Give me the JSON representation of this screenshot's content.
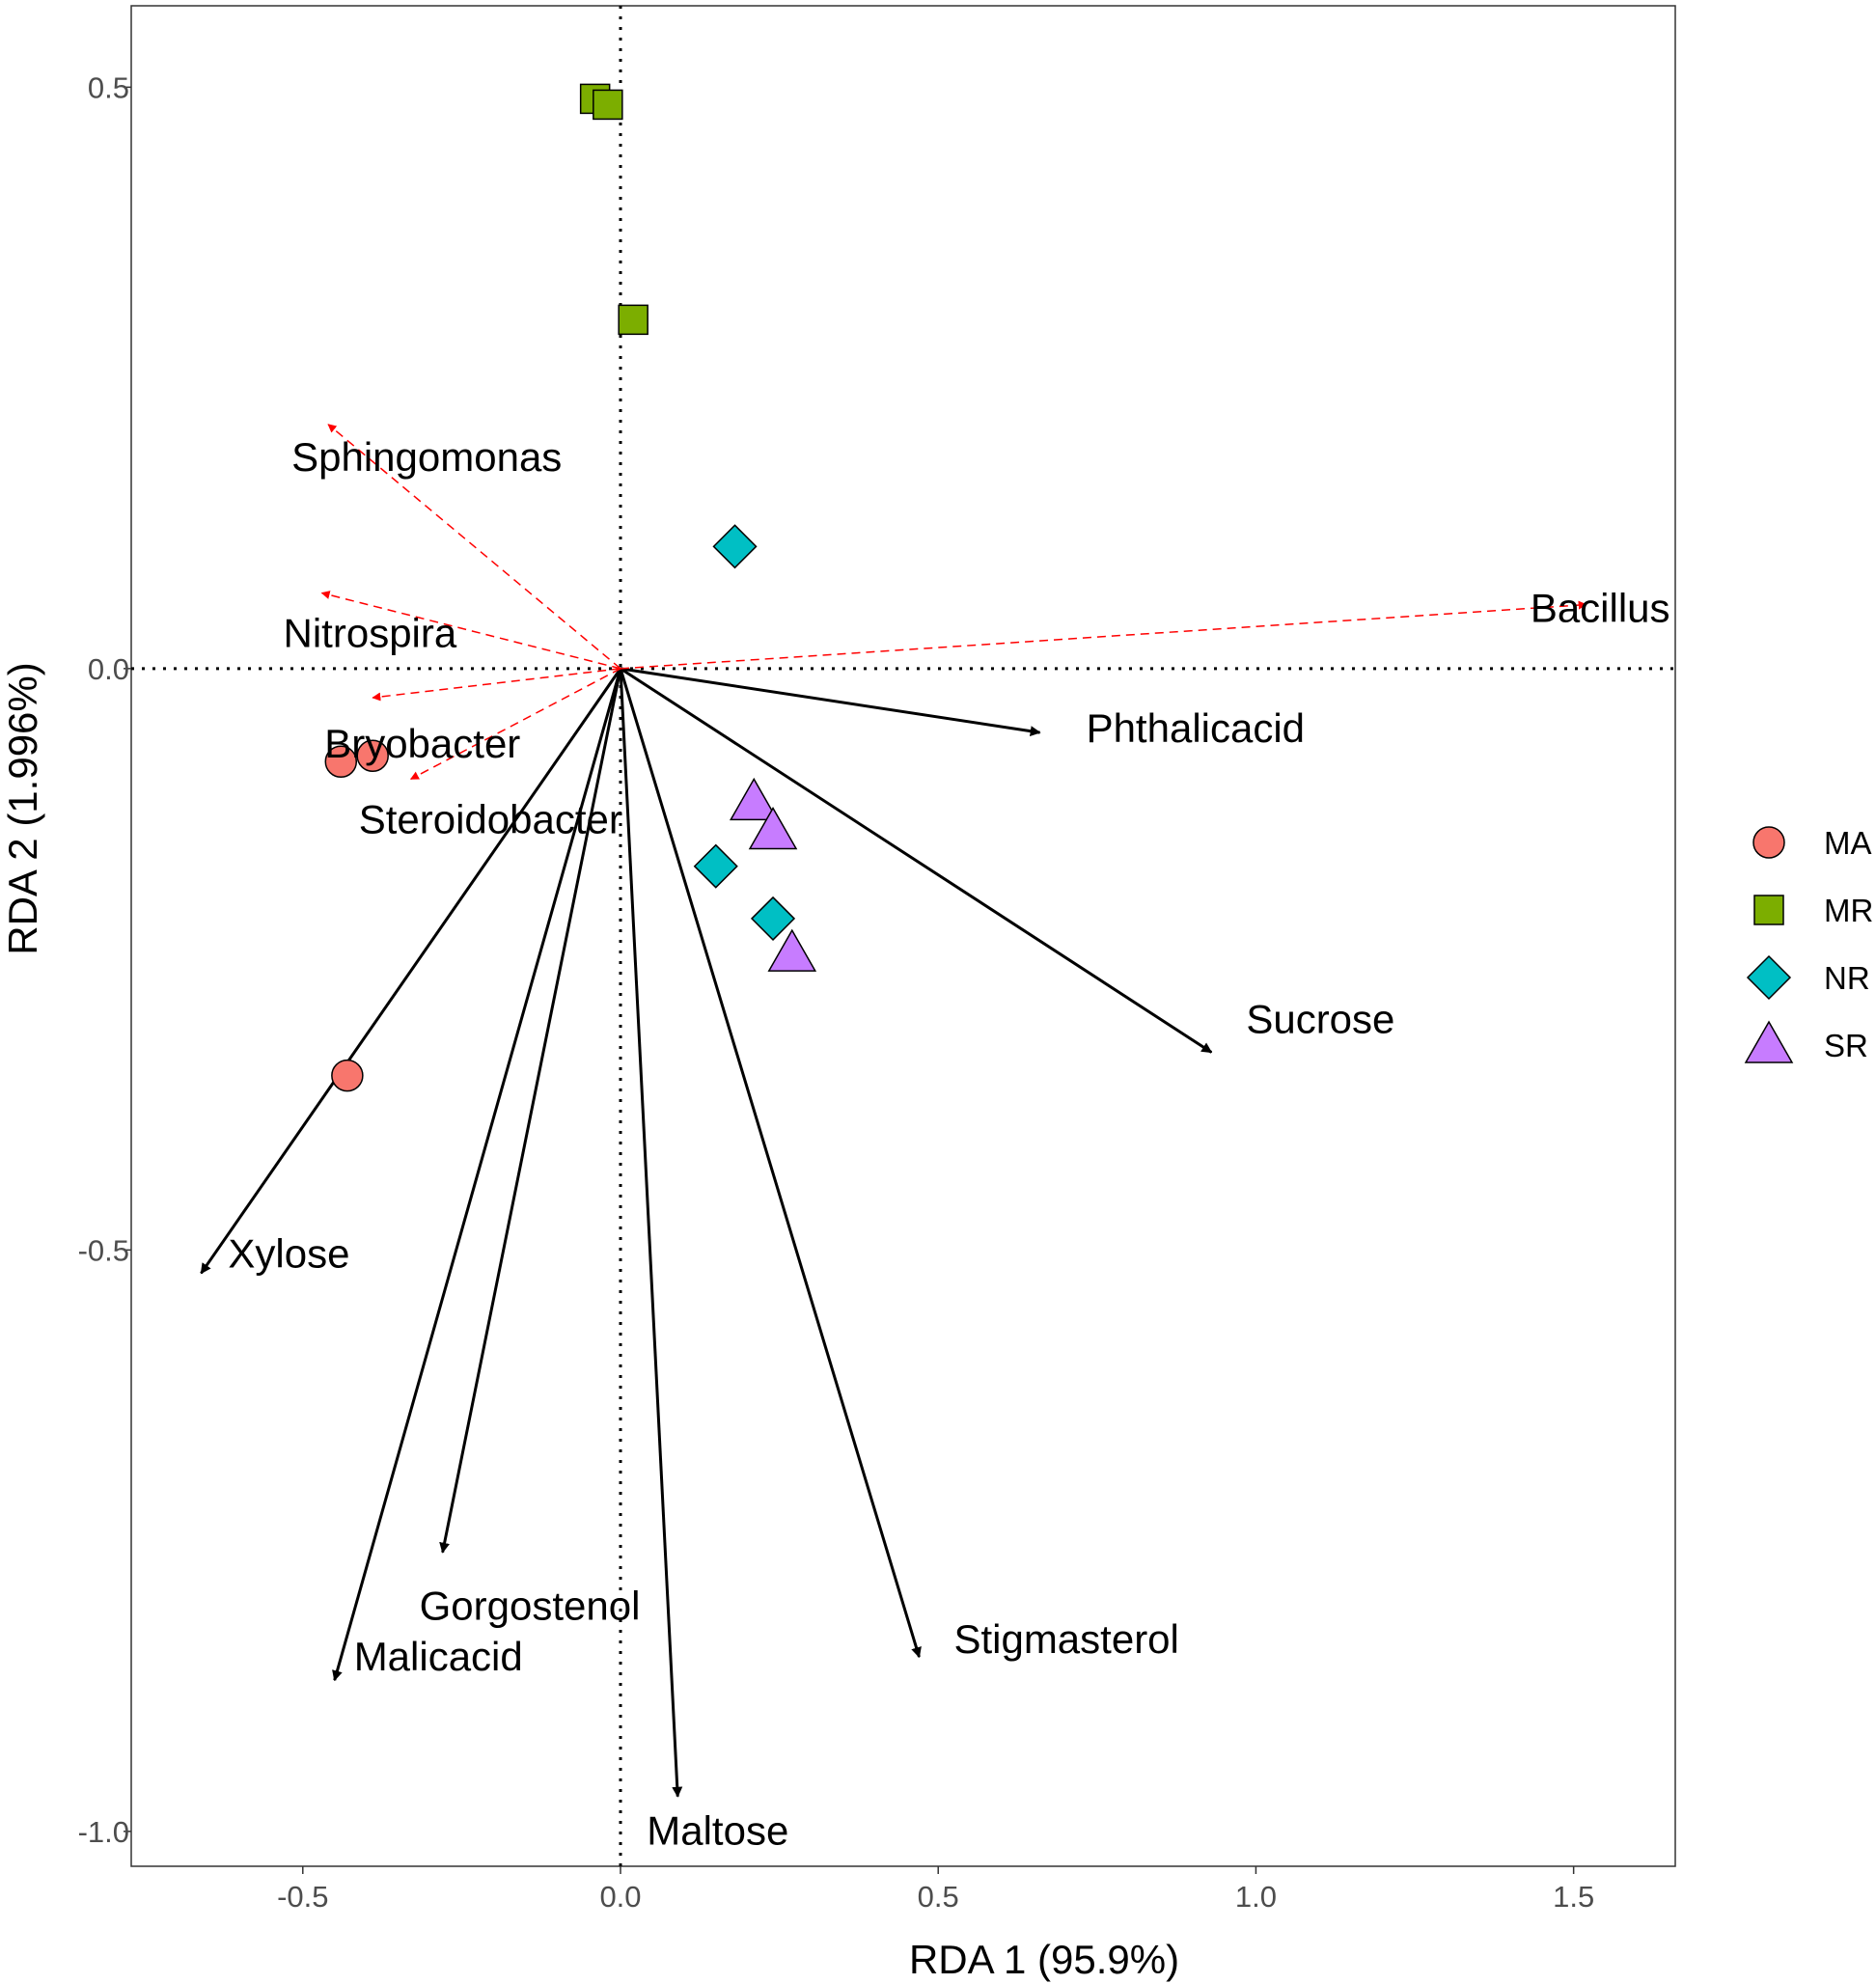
{
  "chart_data": {
    "type": "scatter",
    "title": "",
    "xlabel": "RDA 1 (95.9%)",
    "ylabel": "RDA 2 (1.996%)",
    "xlim": [
      -0.77,
      1.66
    ],
    "ylim": [
      -1.03,
      0.57
    ],
    "xticks": [
      {
        "value": -0.5,
        "label": "-0.5"
      },
      {
        "value": 0.0,
        "label": "0.0"
      },
      {
        "value": 0.5,
        "label": "0.5"
      },
      {
        "value": 1.0,
        "label": "1.0"
      },
      {
        "value": 1.5,
        "label": "1.5"
      }
    ],
    "yticks": [
      {
        "value": 0.5,
        "label": "0.5"
      },
      {
        "value": 0.0,
        "label": "0.0"
      },
      {
        "value": -0.5,
        "label": "-0.5"
      },
      {
        "value": -1.0,
        "label": "-1.0"
      }
    ],
    "grid": false,
    "legend_position": "right",
    "groups": [
      {
        "name": "MA",
        "shape": "circle",
        "color": "#f8766d"
      },
      {
        "name": "MR",
        "shape": "square",
        "color": "#7cae00"
      },
      {
        "name": "NR",
        "shape": "diamond",
        "color": "#00bfc4"
      },
      {
        "name": "SR",
        "shape": "triangle",
        "color": "#c77cff"
      }
    ],
    "points": [
      {
        "group": "MA",
        "x": -0.44,
        "y": -0.08
      },
      {
        "group": "MA",
        "x": -0.39,
        "y": -0.075
      },
      {
        "group": "MA",
        "x": -0.43,
        "y": -0.35
      },
      {
        "group": "MR",
        "x": -0.04,
        "y": 0.49
      },
      {
        "group": "MR",
        "x": -0.02,
        "y": 0.485
      },
      {
        "group": "MR",
        "x": 0.02,
        "y": 0.3
      },
      {
        "group": "NR",
        "x": 0.18,
        "y": 0.105
      },
      {
        "group": "NR",
        "x": 0.15,
        "y": -0.17
      },
      {
        "group": "NR",
        "x": 0.24,
        "y": -0.215
      },
      {
        "group": "SR",
        "x": 0.21,
        "y": -0.115
      },
      {
        "group": "SR",
        "x": 0.24,
        "y": -0.14
      },
      {
        "group": "SR",
        "x": 0.27,
        "y": -0.245
      }
    ],
    "env_vectors": [
      {
        "name": "Phthalicacid",
        "x": 0.66,
        "y": -0.055
      },
      {
        "name": "Sucrose",
        "x": 0.93,
        "y": -0.33
      },
      {
        "name": "Xylose",
        "x": -0.66,
        "y": -0.52
      },
      {
        "name": "Gorgostenol",
        "x": -0.28,
        "y": -0.76
      },
      {
        "name": "Malicacid",
        "x": -0.45,
        "y": -0.87
      },
      {
        "name": "Maltose",
        "x": 0.09,
        "y": -0.97
      },
      {
        "name": "Stigmasterol",
        "x": 0.47,
        "y": -0.85
      }
    ],
    "species_vectors": [
      {
        "name": "Sphingomonas",
        "x": -0.46,
        "y": 0.21
      },
      {
        "name": "Nitrospira",
        "x": -0.47,
        "y": 0.065
      },
      {
        "name": "Bryobacter",
        "x": -0.39,
        "y": -0.025
      },
      {
        "name": "Steroidobacter",
        "x": -0.33,
        "y": -0.095
      },
      {
        "name": "Bacillus",
        "x": 1.52,
        "y": 0.055
      }
    ],
    "env_vector_color": "#000000",
    "species_vector_color": "#ff0000"
  }
}
